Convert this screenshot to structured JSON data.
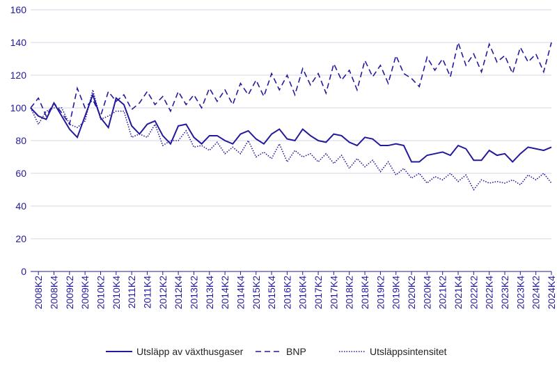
{
  "chart_data": {
    "type": "line",
    "categories": [
      null,
      "2008K2",
      null,
      "2008K4",
      null,
      "2009K2",
      null,
      "2009K4",
      null,
      "2010K2",
      null,
      "2010K4",
      null,
      "2011K2",
      null,
      "2011K4",
      null,
      "2012K2",
      null,
      "2012K4",
      null,
      "2013K2",
      null,
      "2013K4",
      null,
      "2014K2",
      null,
      "2014K4",
      null,
      "2015K2",
      null,
      "2015K4",
      null,
      "2016K2",
      null,
      "2016K4",
      null,
      "2017K2",
      null,
      "2017K4",
      null,
      "2018K2",
      null,
      "2018K4",
      null,
      "2019K2",
      null,
      "2019K4",
      null,
      "2020K2",
      null,
      "2020K4",
      null,
      "2021K2",
      null,
      "2021K4",
      null,
      "2022K2",
      null,
      "2022K4",
      null,
      "2023K2",
      null,
      "2023K4",
      null,
      "2024K2",
      null,
      "2024K4"
    ],
    "series": [
      {
        "name": "Utsläpp av växthusgaser",
        "color": "#22199d",
        "line_style": "solid",
        "values": [
          100,
          95,
          93,
          103,
          95,
          87,
          82,
          95,
          108,
          94,
          88,
          106,
          102,
          89,
          84,
          90,
          92,
          83,
          78,
          89,
          90,
          82,
          78,
          83,
          83,
          80,
          78,
          84,
          86,
          81,
          78,
          84,
          87,
          81,
          80,
          87,
          83,
          80,
          79,
          84,
          83,
          79,
          77,
          82,
          81,
          77,
          77,
          78,
          77,
          67,
          67,
          71,
          72,
          73,
          71,
          77,
          75,
          68,
          68,
          74,
          71,
          72,
          67,
          72,
          76,
          75,
          74,
          76
        ]
      },
      {
        "name": "BNP",
        "color": "#22199d",
        "line_style": "dashed",
        "values": [
          100,
          106,
          95,
          103,
          97,
          90,
          112,
          100,
          105,
          95,
          110,
          104,
          108,
          99,
          103,
          110,
          102,
          107,
          98,
          110,
          102,
          108,
          100,
          112,
          104,
          111,
          102,
          115,
          108,
          117,
          107,
          121,
          111,
          120,
          108,
          124,
          114,
          121,
          109,
          127,
          117,
          123,
          111,
          129,
          119,
          126,
          115,
          132,
          121,
          118,
          113,
          131,
          123,
          130,
          119,
          140,
          126,
          133,
          122,
          139,
          128,
          132,
          121,
          137,
          128,
          133,
          122,
          140
        ]
      },
      {
        "name": "Utsläppsintensitet",
        "color": "#22199d",
        "line_style": "dotted",
        "values": [
          100,
          90,
          98,
          100,
          100,
          90,
          88,
          92,
          111,
          93,
          95,
          98,
          98,
          82,
          84,
          82,
          90,
          77,
          80,
          80,
          86,
          76,
          77,
          74,
          79,
          72,
          76,
          72,
          80,
          70,
          73,
          69,
          78,
          67,
          74,
          70,
          72,
          67,
          72,
          66,
          71,
          63,
          69,
          64,
          68,
          61,
          67,
          59,
          63,
          57,
          60,
          54,
          58,
          56,
          60,
          55,
          59,
          50,
          56,
          54,
          55,
          54,
          56,
          53,
          59,
          56,
          60,
          54
        ]
      }
    ],
    "ylim": [
      0,
      160
    ],
    "yticks": [
      0,
      20,
      40,
      60,
      80,
      100,
      120,
      140,
      160
    ],
    "grid": true,
    "legend": "bottom"
  }
}
